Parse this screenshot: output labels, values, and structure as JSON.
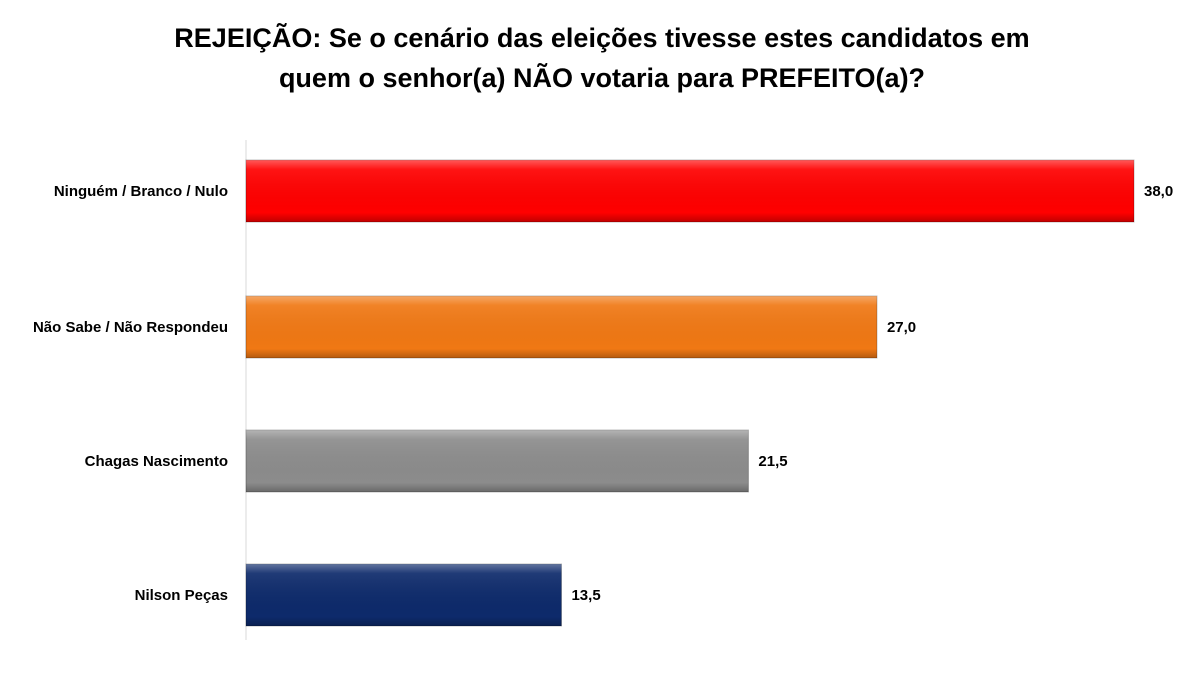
{
  "title_line1": "REJEIÇÃO: Se o cenário das eleições tivesse estes candidatos em",
  "title_line2": "quem o senhor(a) NÃO votaria para PREFEITO(a)?",
  "chart_data": {
    "type": "bar",
    "orientation": "horizontal",
    "title": "REJEIÇÃO: Se o cenário das eleições tivesse estes candidatos em quem o senhor(a) NÃO votaria para PREFEITO(a)?",
    "categories": [
      "Ninguém / Branco / Nulo",
      "Não Sabe / Não Respondeu",
      "Chagas Nascimento",
      "Nilson Peças"
    ],
    "values": [
      38.0,
      27.0,
      21.5,
      13.5
    ],
    "value_labels": [
      "38,0",
      "27,0",
      "21,5",
      "13,5"
    ],
    "colors": [
      "#ff0000",
      "#f07814",
      "#8c8c8c",
      "#0d2a6b"
    ],
    "xlim": [
      0,
      38
    ],
    "grid": false,
    "legend": "none"
  }
}
